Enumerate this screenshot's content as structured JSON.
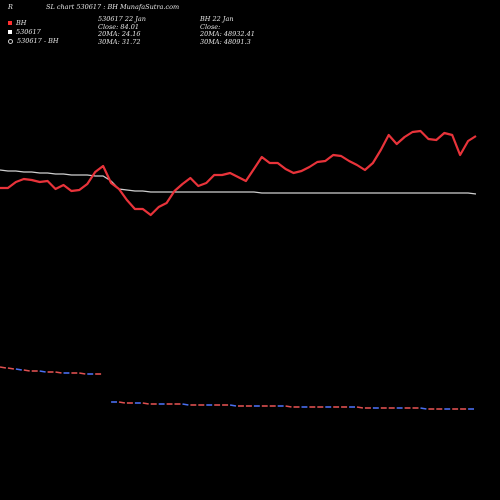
{
  "header": {
    "left_label": "R",
    "title": "SL chart 530617 : BH MunafaSutra.com"
  },
  "legend": {
    "items": [
      {
        "label": "BH",
        "symbol": "red-square"
      },
      {
        "label": "530617",
        "symbol": "white-square"
      },
      {
        "label": "530617 - BH",
        "symbol": "circle"
      }
    ]
  },
  "block_530617": {
    "line1": "530617 22 Jan",
    "line2": "Close: 84.01",
    "line3": "20MA: 24.16",
    "line4": "30MA: 31.72"
  },
  "block_bh": {
    "line1": "BH 22 Jan",
    "line2": "Close:",
    "line3": "20MA: 48932.41",
    "line4": "30MA: 48091.3"
  },
  "colors": {
    "background": "#000000",
    "price_line": "#e8333a",
    "ma_line": "#d0d0d0",
    "bottom_red": "#e05050",
    "bottom_blue": "#4a6ff0"
  },
  "chart_data": {
    "type": "line",
    "y_axis": "none",
    "series": [
      {
        "role": "red ratio line",
        "values": [
          73,
          73,
          79,
          82,
          81,
          79,
          80,
          72,
          76,
          70,
          71,
          77,
          89,
          95,
          78,
          72,
          61,
          52,
          52,
          46,
          54,
          58,
          70,
          77,
          83,
          75,
          78,
          86,
          86,
          88,
          84,
          80,
          92,
          104,
          98,
          98,
          92,
          88,
          90,
          94,
          99,
          100,
          106,
          105,
          100,
          96,
          91,
          98,
          111,
          126,
          117,
          124,
          129,
          130,
          122,
          121,
          128,
          126,
          106,
          120,
          125
        ]
      },
      {
        "role": "white moving average line",
        "values": [
          91,
          90,
          90,
          89,
          89,
          88,
          88,
          87,
          87,
          86,
          86,
          86,
          85,
          85,
          80,
          72,
          71,
          70,
          70,
          69,
          69,
          69,
          69,
          69,
          69,
          69,
          69,
          69,
          69,
          69,
          69,
          69,
          69,
          68,
          68,
          68,
          68,
          68,
          68,
          68,
          68,
          68,
          68,
          68,
          68,
          68,
          68,
          68,
          68,
          68,
          68,
          68,
          68,
          68,
          68,
          68,
          68,
          68,
          68,
          68,
          67
        ]
      }
    ],
    "bottom_dashed": {
      "values": [
        9.5,
        9.4,
        9.3,
        9.2,
        9.1,
        9.1,
        9.0,
        9.0,
        8.9,
        8.9,
        8.9,
        8.8,
        8.8,
        8.8,
        6.0,
        6.0,
        5.9,
        5.9,
        5.9,
        5.8,
        5.8,
        5.8,
        5.8,
        5.8,
        5.7,
        5.7,
        5.7,
        5.7,
        5.7,
        5.7,
        5.6,
        5.6,
        5.6,
        5.6,
        5.6,
        5.6,
        5.6,
        5.5,
        5.5,
        5.5,
        5.5,
        5.5,
        5.5,
        5.5,
        5.5,
        5.5,
        5.4,
        5.4,
        5.4,
        5.4,
        5.4,
        5.4,
        5.4,
        5.4,
        5.3,
        5.3,
        5.3,
        5.3,
        5.3,
        5.3,
        5.3
      ],
      "colors": [
        "#e05050",
        "#4a6ff0"
      ]
    }
  }
}
